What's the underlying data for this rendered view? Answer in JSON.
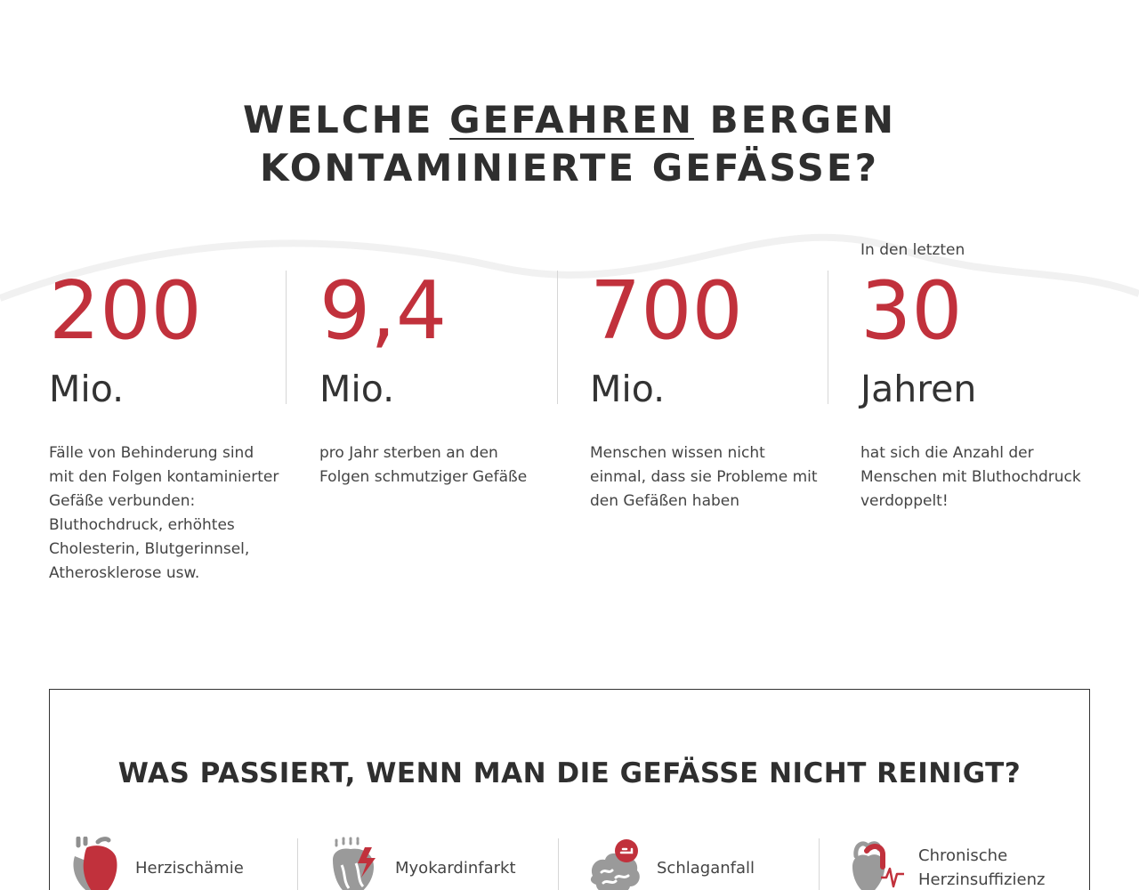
{
  "title": {
    "before": "WELCHE ",
    "emphasis": "GEFAHREN",
    "after": " BERGEN KONTAMINIERTE GEFÄSSE?"
  },
  "stats": [
    {
      "prefix": "",
      "number": "200",
      "unit": "Mio.",
      "description": "Fälle von Behinderung sind mit den Folgen kontaminierter Gefäße verbunden: Bluthochdruck, erhöhtes Cholesterin, Blutgerinnsel, Atherosklerose usw."
    },
    {
      "prefix": "",
      "number": "9,4",
      "unit": "Mio.",
      "description": "pro Jahr sterben an den Folgen schmutziger Gefäße"
    },
    {
      "prefix": "",
      "number": "700",
      "unit": "Mio.",
      "description": "Menschen wissen nicht einmal, dass sie Probleme mit den Gefäßen haben"
    },
    {
      "prefix": "In den letzten",
      "number": "30",
      "unit": "Jahren",
      "description": "hat sich die Anzahl der Menschen mit Bluthochdruck verdoppelt!"
    }
  ],
  "consequences": {
    "title": "WAS PASSIERT, WENN MAN DIE GEFÄSSE NICHT REINIGT?",
    "items": [
      {
        "label": "Herzischämie",
        "icon": "heart-icon"
      },
      {
        "label": "Myokardinfarkt",
        "icon": "heart-attack-icon"
      },
      {
        "label": "Schlaganfall",
        "icon": "brain-icon"
      },
      {
        "label": "Chronische Herzinsuffizienz",
        "icon": "heart-pulse-icon"
      }
    ]
  },
  "colors": {
    "accent": "#c1313c",
    "text": "#333333",
    "icon_gray": "#9a9a9a"
  }
}
